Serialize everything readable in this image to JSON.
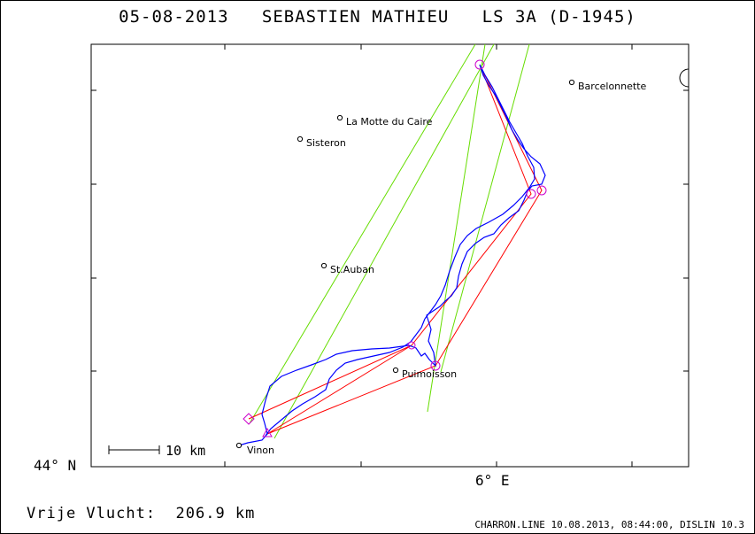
{
  "header": {
    "date": "05-08-2013",
    "pilot": "SEBASTIEN MATHIEU",
    "glider": "LS 3A (D-1945)"
  },
  "axes": {
    "lat_label": "44° N",
    "lon_label": "6° E"
  },
  "scale_bar": {
    "label": "10 km"
  },
  "towns": [
    {
      "name": "La Motte du Caire"
    },
    {
      "name": "Sisteron"
    },
    {
      "name": "Barcelonnette"
    },
    {
      "name": "St.Auban"
    },
    {
      "name": "Puimoisson"
    },
    {
      "name": "Vinon"
    }
  ],
  "footer": {
    "distance_text": "Vrije Vlucht:  206.9 km",
    "credit_text": "CHARRON.LINE 10.08.2013, 08:44:00, DISLIN 10.3"
  },
  "colors": {
    "track": "#0000ff",
    "task_lines": "#ff0000",
    "sector_lines": "#66dd00",
    "turnpoints": "#cc00cc"
  }
}
